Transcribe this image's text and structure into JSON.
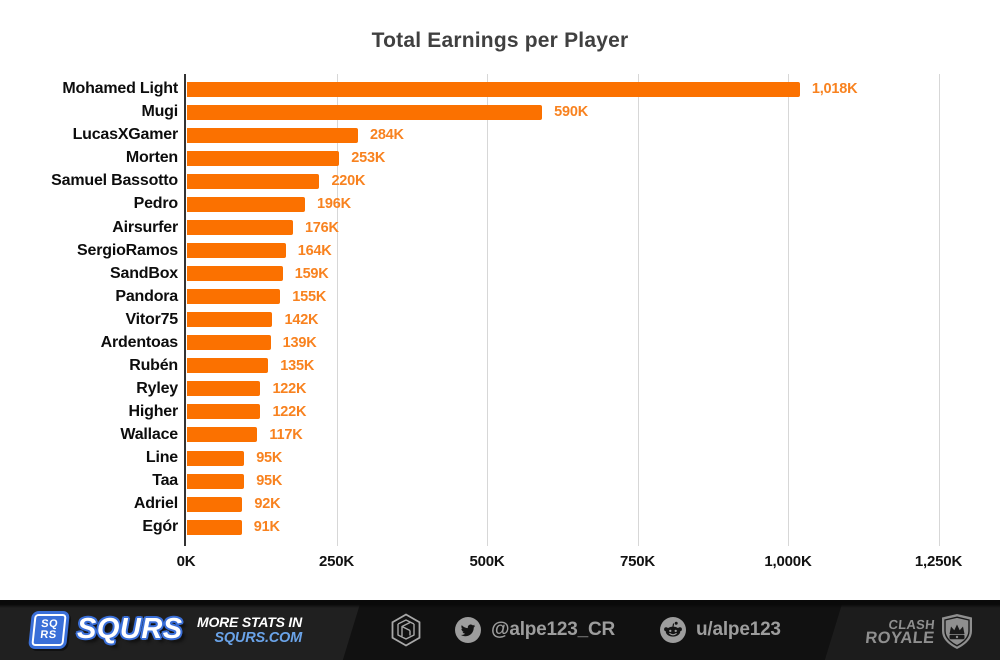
{
  "chart_data": {
    "type": "bar",
    "orientation": "horizontal",
    "title": "Total Earnings per Player",
    "categories": [
      "Mohamed Light",
      "Mugi",
      "LucasXGamer",
      "Morten",
      "Samuel Bassotto",
      "Pedro",
      "Airsurfer",
      "SergioRamos",
      "SandBox",
      "Pandora",
      "Vitor75",
      "Ardentoas",
      "Rubén",
      "Ryley",
      "Higher",
      "Wallace",
      "Line",
      "Taa",
      "Adriel",
      "Egór"
    ],
    "values": [
      1018,
      590,
      284,
      253,
      220,
      196,
      176,
      164,
      159,
      155,
      142,
      139,
      135,
      122,
      122,
      117,
      95,
      95,
      92,
      91
    ],
    "value_labels": [
      "1,018K",
      "590K",
      "284K",
      "253K",
      "220K",
      "196K",
      "176K",
      "164K",
      "159K",
      "155K",
      "142K",
      "139K",
      "135K",
      "122K",
      "122K",
      "117K",
      "95K",
      "95K",
      "92K",
      "91K"
    ],
    "x_tick_labels": [
      "0K",
      "250K",
      "500K",
      "750K",
      "1,000K",
      "1,250K"
    ],
    "x_tick_values": [
      0,
      250,
      500,
      750,
      1000,
      1250
    ],
    "xlim": [
      0,
      1283
    ],
    "unit": "K",
    "grid": true,
    "legend": false,
    "bar_color": "#fb7100",
    "value_label_color": "#f8821f",
    "grid_color": "#d7d7d7",
    "axis_color": "#333333"
  },
  "footer": {
    "squrs_badge_line1": "SQ",
    "squrs_badge_line2": "RS",
    "squrs_wordmark": "SQURS",
    "more_stats_line1": "MORE STATS IN",
    "more_stats_line2": "SQURS.COM",
    "twitter_handle": "@alpe123_CR",
    "reddit_handle": "u/alpe123",
    "clash_royale_line1": "CLASH",
    "clash_royale_line2": "ROYALE",
    "squrs_blue": "#3a6fd8",
    "squrs_com_blue": "#6aa3e8",
    "handle_gray": "#9d9d9d"
  }
}
